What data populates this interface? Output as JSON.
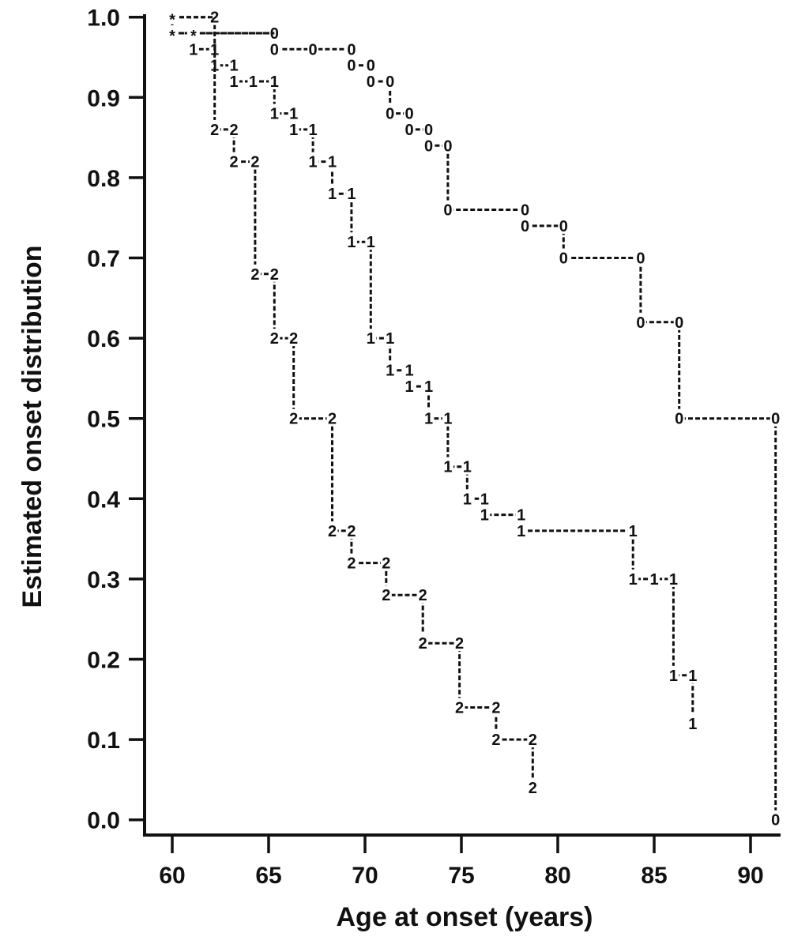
{
  "chart_data": {
    "type": "line",
    "subtype": "step (Kaplan-Meier style)",
    "title": "",
    "xlabel": "Age at onset (years)",
    "ylabel": "Estimated onset distribution",
    "xlim": [
      59,
      92
    ],
    "ylim": [
      0.0,
      1.0
    ],
    "x_ticks": [
      60,
      65,
      70,
      75,
      80,
      85,
      90
    ],
    "y_ticks": [
      "0.0",
      "0.1",
      "0.2",
      "0.3",
      "0.4",
      "0.5",
      "0.6",
      "0.7",
      "0.8",
      "0.9",
      "1.0"
    ],
    "grid": false,
    "legend": "none (curves identified by plotted symbols 0, 1, 2; * marks coincident points)",
    "series": [
      {
        "name": "0",
        "marker": "0",
        "steps": [
          [
            60,
            1.0
          ],
          [
            60.0,
            0.98
          ],
          [
            65.3,
            0.98
          ],
          [
            65.3,
            0.96
          ],
          [
            69.3,
            0.96
          ],
          [
            69.3,
            0.94
          ],
          [
            70.3,
            0.94
          ],
          [
            70.3,
            0.92
          ],
          [
            71.3,
            0.92
          ],
          [
            71.3,
            0.88
          ],
          [
            72.3,
            0.88
          ],
          [
            72.3,
            0.86
          ],
          [
            73.3,
            0.86
          ],
          [
            73.3,
            0.84
          ],
          [
            74.3,
            0.84
          ],
          [
            74.3,
            0.76
          ],
          [
            78.3,
            0.76
          ],
          [
            78.3,
            0.74
          ],
          [
            80.3,
            0.74
          ],
          [
            80.3,
            0.7
          ],
          [
            84.3,
            0.7
          ],
          [
            84.3,
            0.62
          ],
          [
            86.3,
            0.62
          ],
          [
            86.3,
            0.5
          ],
          [
            91.3,
            0.5
          ],
          [
            91.3,
            0.0
          ]
        ],
        "marker_points": [
          [
            65.3,
            0.98
          ],
          [
            65.3,
            0.96
          ],
          [
            67.3,
            0.96
          ],
          [
            69.3,
            0.96
          ],
          [
            69.3,
            0.94
          ],
          [
            70.3,
            0.94
          ],
          [
            70.3,
            0.92
          ],
          [
            71.3,
            0.92
          ],
          [
            71.3,
            0.88
          ],
          [
            72.3,
            0.88
          ],
          [
            72.3,
            0.86
          ],
          [
            73.3,
            0.86
          ],
          [
            73.3,
            0.84
          ],
          [
            74.3,
            0.84
          ],
          [
            74.3,
            0.76
          ],
          [
            78.3,
            0.76
          ],
          [
            78.3,
            0.74
          ],
          [
            80.3,
            0.74
          ],
          [
            80.3,
            0.7
          ],
          [
            84.3,
            0.7
          ],
          [
            84.3,
            0.62
          ],
          [
            86.3,
            0.62
          ],
          [
            86.3,
            0.5
          ],
          [
            91.3,
            0.5
          ],
          [
            91.3,
            0.0
          ]
        ]
      },
      {
        "name": "1",
        "marker": "1",
        "steps": [
          [
            60,
            0.98
          ],
          [
            61.1,
            0.98
          ],
          [
            61.1,
            0.96
          ],
          [
            62.2,
            0.96
          ],
          [
            62.2,
            0.94
          ],
          [
            63.2,
            0.94
          ],
          [
            63.2,
            0.92
          ],
          [
            65.3,
            0.92
          ],
          [
            65.3,
            0.88
          ],
          [
            66.3,
            0.88
          ],
          [
            66.3,
            0.86
          ],
          [
            67.3,
            0.86
          ],
          [
            67.3,
            0.82
          ],
          [
            68.3,
            0.82
          ],
          [
            68.3,
            0.78
          ],
          [
            69.3,
            0.78
          ],
          [
            69.3,
            0.72
          ],
          [
            70.3,
            0.72
          ],
          [
            70.3,
            0.6
          ],
          [
            71.3,
            0.6
          ],
          [
            71.3,
            0.56
          ],
          [
            72.3,
            0.56
          ],
          [
            72.3,
            0.54
          ],
          [
            73.3,
            0.54
          ],
          [
            73.3,
            0.5
          ],
          [
            74.3,
            0.5
          ],
          [
            74.3,
            0.44
          ],
          [
            75.3,
            0.44
          ],
          [
            75.3,
            0.4
          ],
          [
            76.2,
            0.4
          ],
          [
            76.2,
            0.38
          ],
          [
            78.1,
            0.38
          ],
          [
            78.1,
            0.36
          ],
          [
            83.9,
            0.36
          ],
          [
            83.9,
            0.3
          ],
          [
            86.0,
            0.3
          ],
          [
            86.0,
            0.18
          ],
          [
            87.0,
            0.18
          ],
          [
            87.0,
            0.12
          ]
        ],
        "marker_points": [
          [
            61.1,
            0.96
          ],
          [
            62.2,
            0.96
          ],
          [
            62.2,
            0.94
          ],
          [
            63.2,
            0.94
          ],
          [
            63.2,
            0.92
          ],
          [
            64.2,
            0.92
          ],
          [
            65.3,
            0.92
          ],
          [
            65.3,
            0.88
          ],
          [
            66.3,
            0.88
          ],
          [
            66.3,
            0.86
          ],
          [
            67.3,
            0.86
          ],
          [
            67.3,
            0.82
          ],
          [
            68.3,
            0.82
          ],
          [
            68.3,
            0.78
          ],
          [
            69.3,
            0.78
          ],
          [
            69.3,
            0.72
          ],
          [
            70.3,
            0.72
          ],
          [
            70.3,
            0.6
          ],
          [
            71.3,
            0.6
          ],
          [
            71.3,
            0.56
          ],
          [
            72.3,
            0.56
          ],
          [
            72.3,
            0.54
          ],
          [
            73.3,
            0.54
          ],
          [
            73.3,
            0.5
          ],
          [
            74.3,
            0.5
          ],
          [
            74.3,
            0.44
          ],
          [
            75.3,
            0.44
          ],
          [
            75.3,
            0.4
          ],
          [
            76.2,
            0.4
          ],
          [
            76.2,
            0.38
          ],
          [
            78.1,
            0.38
          ],
          [
            78.1,
            0.36
          ],
          [
            83.9,
            0.36
          ],
          [
            83.9,
            0.3
          ],
          [
            85.0,
            0.3
          ],
          [
            86.0,
            0.3
          ],
          [
            86.0,
            0.18
          ],
          [
            87.0,
            0.18
          ],
          [
            87.0,
            0.12
          ]
        ]
      },
      {
        "name": "2",
        "marker": "2",
        "steps": [
          [
            60,
            1.0
          ],
          [
            62.2,
            1.0
          ],
          [
            62.2,
            0.86
          ],
          [
            63.2,
            0.86
          ],
          [
            63.2,
            0.82
          ],
          [
            64.3,
            0.82
          ],
          [
            64.3,
            0.68
          ],
          [
            65.3,
            0.68
          ],
          [
            65.3,
            0.6
          ],
          [
            66.3,
            0.6
          ],
          [
            66.3,
            0.5
          ],
          [
            68.3,
            0.5
          ],
          [
            68.3,
            0.36
          ],
          [
            69.3,
            0.36
          ],
          [
            69.3,
            0.32
          ],
          [
            71.1,
            0.32
          ],
          [
            71.1,
            0.28
          ],
          [
            73.0,
            0.28
          ],
          [
            73.0,
            0.22
          ],
          [
            74.9,
            0.22
          ],
          [
            74.9,
            0.14
          ],
          [
            76.8,
            0.14
          ],
          [
            76.8,
            0.1
          ],
          [
            78.7,
            0.1
          ],
          [
            78.7,
            0.04
          ]
        ],
        "marker_points": [
          [
            62.2,
            1.0
          ],
          [
            62.2,
            0.86
          ],
          [
            63.2,
            0.86
          ],
          [
            63.2,
            0.82
          ],
          [
            64.3,
            0.82
          ],
          [
            64.3,
            0.68
          ],
          [
            65.3,
            0.68
          ],
          [
            65.3,
            0.6
          ],
          [
            66.3,
            0.6
          ],
          [
            66.3,
            0.5
          ],
          [
            68.3,
            0.5
          ],
          [
            68.3,
            0.36
          ],
          [
            69.3,
            0.36
          ],
          [
            69.3,
            0.32
          ],
          [
            71.1,
            0.32
          ],
          [
            71.1,
            0.28
          ],
          [
            73.0,
            0.28
          ],
          [
            73.0,
            0.22
          ],
          [
            74.9,
            0.22
          ],
          [
            74.9,
            0.14
          ],
          [
            76.8,
            0.14
          ],
          [
            76.8,
            0.1
          ],
          [
            78.7,
            0.1
          ],
          [
            78.7,
            0.04
          ]
        ]
      }
    ],
    "coincident_markers": [
      {
        "symbol": "*",
        "x": 60.0,
        "y": 1.0
      },
      {
        "symbol": "*",
        "x": 60.0,
        "y": 0.98
      },
      {
        "symbol": "*",
        "x": 61.1,
        "y": 0.98
      }
    ]
  },
  "axes": {
    "xlabel": "Age at onset (years)",
    "ylabel": "Estimated onset distribution"
  }
}
